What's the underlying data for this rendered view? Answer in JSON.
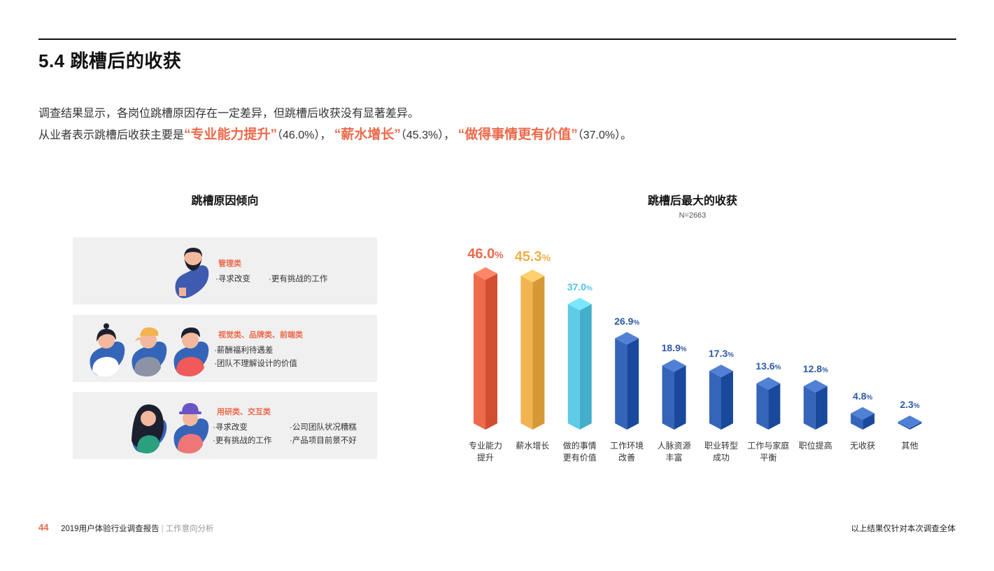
{
  "header": {
    "title": "5.4 跳槽后的收获"
  },
  "summary": {
    "line1": "调查结果显示，各岗位跳槽原因存在一定差异，但跳槽后收获没有显著差异。",
    "line2_prefix": "从业者表示跳槽后收获主要是",
    "highlights": [
      {
        "open": "“",
        "text": "专业能力提升",
        "close": "”",
        "value": "（46.0%），"
      },
      {
        "open": "“",
        "text": "薪水增长",
        "close": "”",
        "value": "（45.3%），"
      },
      {
        "open": "“",
        "text": "做得事情更有价值",
        "close": "”",
        "value": "（37.0%）。"
      }
    ]
  },
  "left_panel": {
    "title": "跳槽原因倾向",
    "cards": [
      {
        "heading": "管理类",
        "items": [
          "·寻求改变",
          "·更有挑战的工作"
        ]
      },
      {
        "heading": "视觉类、品牌类、前端类",
        "items": [
          "·薪酬福利待遇差",
          "·团队不理解设计的价值"
        ]
      },
      {
        "heading": "用研类、交互类",
        "items": [
          "·寻求改变",
          "·公司团队状况糟糕",
          "·更有挑战的工作",
          "·产品项目前景不好"
        ]
      }
    ]
  },
  "right_panel": {
    "title": "跳槽后最大的收获",
    "n_label": "N=2663"
  },
  "chart_data": {
    "type": "bar",
    "title": "跳槽后最大的收获",
    "subtitle": "N=2663",
    "xlabel": "",
    "ylabel": "",
    "unit": "%",
    "categories": [
      "专业能力提升",
      "薪水增长",
      "做的事情更有价值",
      "工作环境改善",
      "人脉资源丰富",
      "职业转型成功",
      "工作与家庭平衡",
      "职位提高",
      "无收获",
      "其他"
    ],
    "category_lines": [
      [
        "专业能力",
        "提升"
      ],
      [
        "薪水增长"
      ],
      [
        "做的事情",
        "更有价值"
      ],
      [
        "工作环境",
        "改善"
      ],
      [
        "人脉资源",
        "丰富"
      ],
      [
        "职业转型",
        "成功"
      ],
      [
        "工作与家庭",
        "平衡"
      ],
      [
        "职位提高"
      ],
      [
        "无收获"
      ],
      [
        "其他"
      ]
    ],
    "values": [
      46.0,
      45.3,
      37.0,
      26.9,
      18.9,
      17.3,
      13.6,
      12.8,
      4.8,
      2.3
    ],
    "value_labels": [
      "46.0",
      "45.3",
      "37.0",
      "26.9",
      "18.9",
      "17.3",
      "13.6",
      "12.8",
      "4.8",
      "2.3"
    ],
    "colors": [
      "#ee6a4d",
      "#f2b451",
      "#5fcbe6",
      "#3565b8",
      "#3565b8",
      "#3565b8",
      "#3565b8",
      "#3565b8",
      "#3565b8",
      "#3565b8"
    ],
    "label_colors": [
      "#ec6a4c",
      "#f0b04a",
      "#4fc3e3",
      "#2e5aa6",
      "#2e5aa6",
      "#2e5aa6",
      "#2e5aa6",
      "#2e5aa6",
      "#2e5aa6",
      "#2e5aa6"
    ],
    "grid": false,
    "legend": "none",
    "style": "3d-isometric-columns"
  },
  "footer": {
    "page_number": "44",
    "report_title": "2019用户体验行业调查报告",
    "separator": "|",
    "section": "工作意向分析",
    "note": "以上结果仅针对本次调查全体"
  }
}
